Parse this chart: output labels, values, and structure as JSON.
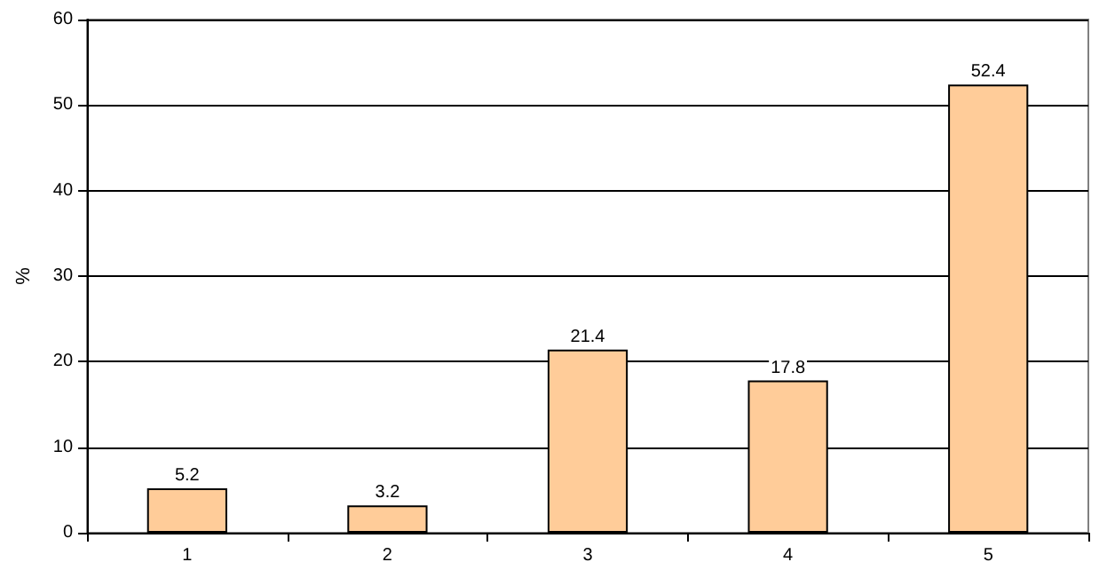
{
  "chart_data": {
    "type": "bar",
    "ylabel": "%",
    "categories": [
      "1",
      "2",
      "3",
      "4",
      "5"
    ],
    "values": [
      5.2,
      3.2,
      21.4,
      17.8,
      52.4
    ],
    "color": "#ffcc99",
    "ylim": [
      0,
      60
    ],
    "yticks": [
      0,
      10,
      20,
      30,
      40,
      50,
      60
    ],
    "grid": "y",
    "data_labels": true
  }
}
